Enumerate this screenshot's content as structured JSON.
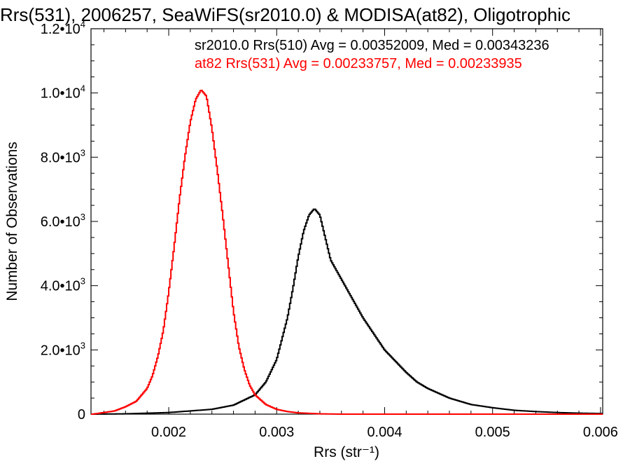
{
  "chart_data": {
    "type": "line",
    "title": "Rrs(531), 2006257, SeaWiFS(sr2010.0) & MODISA(at82), Oligotrophic",
    "xlabel": "Rrs (str⁻¹)",
    "ylabel": "Number of Observations",
    "xlim": [
      0.00128,
      0.00602
    ],
    "ylim": [
      0,
      12000
    ],
    "grid": false,
    "legend_position": "top-right",
    "x_ticks": [
      {
        "value": 0.002,
        "label": "0.002"
      },
      {
        "value": 0.003,
        "label": "0.003"
      },
      {
        "value": 0.004,
        "label": "0.004"
      },
      {
        "value": 0.005,
        "label": "0.005"
      },
      {
        "value": 0.006,
        "label": "0.006"
      }
    ],
    "y_ticks": [
      {
        "value": 0,
        "mantissa": "0",
        "exponent": ""
      },
      {
        "value": 2000,
        "mantissa": "2.0•10",
        "exponent": "3"
      },
      {
        "value": 4000,
        "mantissa": "4.0•10",
        "exponent": "3"
      },
      {
        "value": 6000,
        "mantissa": "6.0•10",
        "exponent": "3"
      },
      {
        "value": 8000,
        "mantissa": "8.0•10",
        "exponent": "3"
      },
      {
        "value": 10000,
        "mantissa": "1.0•10",
        "exponent": "4"
      },
      {
        "value": 12000,
        "mantissa": "1.2•10",
        "exponent": "4"
      }
    ],
    "series": [
      {
        "legend": "sr2010.0 Rrs(510) Avg = 0.00352009, Med = 0.00343236",
        "color": "#000000",
        "x": [
          0.0013,
          0.0016,
          0.002,
          0.0024,
          0.0026,
          0.0028,
          0.0029,
          0.003,
          0.0031,
          0.00315,
          0.0032,
          0.00325,
          0.0033,
          0.00335,
          0.0034,
          0.00345,
          0.0035,
          0.0036,
          0.0037,
          0.0038,
          0.0039,
          0.004,
          0.0041,
          0.0042,
          0.0043,
          0.0044,
          0.0045,
          0.0046,
          0.0047,
          0.0048,
          0.005,
          0.0052,
          0.0054,
          0.0056,
          0.0058,
          0.006
        ],
        "values": [
          0,
          10,
          50,
          150,
          280,
          600,
          1000,
          1700,
          3000,
          3900,
          4900,
          5700,
          6200,
          6400,
          6200,
          5500,
          4800,
          4200,
          3600,
          3000,
          2500,
          2000,
          1650,
          1300,
          1000,
          800,
          650,
          500,
          400,
          300,
          200,
          120,
          80,
          50,
          30,
          20
        ]
      },
      {
        "legend": "at82 Rrs(531) Avg = 0.00233757, Med = 0.00233935",
        "color": "#ff0000",
        "x": [
          0.0013,
          0.0015,
          0.0016,
          0.0017,
          0.0018,
          0.00185,
          0.0019,
          0.00195,
          0.002,
          0.00205,
          0.0021,
          0.00215,
          0.0022,
          0.00225,
          0.0023,
          0.00235,
          0.0024,
          0.00245,
          0.0025,
          0.00255,
          0.0026,
          0.00265,
          0.0027,
          0.00275,
          0.0028,
          0.0029,
          0.003,
          0.0031,
          0.0032,
          0.0034,
          0.0036
        ],
        "values": [
          0,
          100,
          230,
          400,
          800,
          1200,
          1800,
          2600,
          3800,
          5200,
          6700,
          8000,
          9100,
          9800,
          10100,
          9900,
          8900,
          7600,
          6200,
          4700,
          3200,
          2100,
          1400,
          900,
          600,
          300,
          150,
          80,
          40,
          10,
          0
        ]
      }
    ]
  }
}
